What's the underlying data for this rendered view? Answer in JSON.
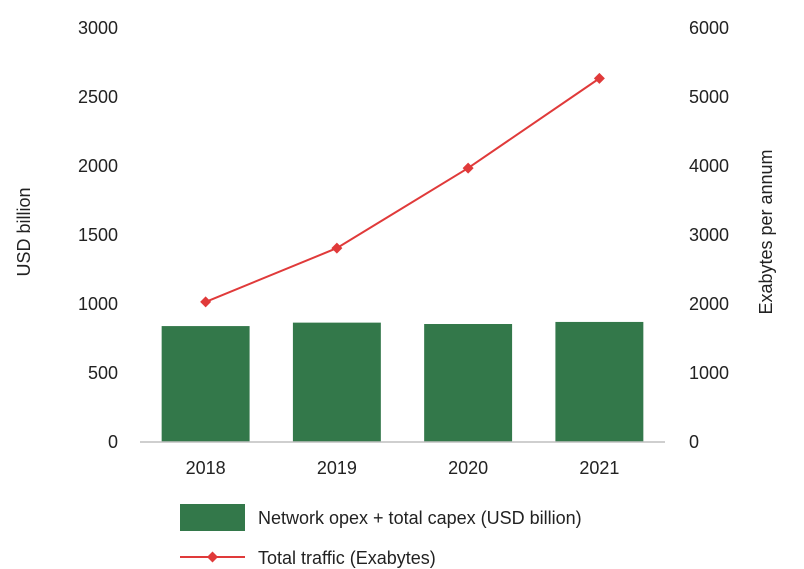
{
  "chart_data": {
    "type": "bar",
    "categories": [
      "2018",
      "2019",
      "2020",
      "2021"
    ],
    "series": [
      {
        "name": "Network opex + total capex (USD billion)",
        "type": "bar",
        "axis": "left",
        "values": [
          840,
          865,
          855,
          870
        ],
        "color": "#33784a"
      },
      {
        "name": "Total traffic (Exabytes)",
        "type": "line",
        "axis": "right",
        "marker": "diamond",
        "values": [
          2030,
          2810,
          3970,
          5270
        ],
        "color": "#e03a3a"
      }
    ],
    "y_left": {
      "label": "USD billion",
      "min": 0,
      "max": 3000,
      "ticks": [
        "0",
        "500",
        "1000",
        "1500",
        "2000",
        "2500",
        "3000"
      ]
    },
    "y_right": {
      "label": "Exabytes per annum",
      "min": 0,
      "max": 6000,
      "ticks": [
        "0",
        "1000",
        "2000",
        "3000",
        "4000",
        "5000",
        "6000"
      ]
    },
    "grid": false,
    "legend_position": "bottom"
  }
}
